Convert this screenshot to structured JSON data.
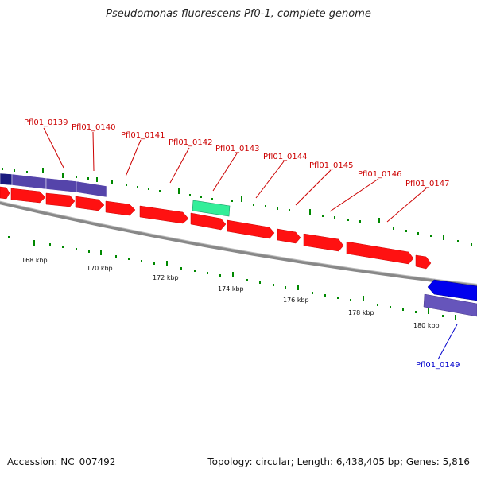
{
  "title": "Pseudomonas fluorescens Pf0-1, complete genome",
  "footer": {
    "accession": "Accession: NC_007492",
    "summary": "Topology: circular; Length: 6,438,405 bp; Genes: 5,816"
  },
  "colors": {
    "forward_gene": "#ff0000",
    "highlight_gene": "#33dd99",
    "reverse_gene": "#0000ee",
    "reverse_gene_light": "#6655bb",
    "forward_label": "#cc0000",
    "reverse_label": "#0000cc",
    "backbone": "#888888",
    "tick": "#008800"
  },
  "gene_labels": [
    {
      "text": "Pfl01_0139",
      "strand": "forward"
    },
    {
      "text": "Pfl01_0140",
      "strand": "forward"
    },
    {
      "text": "Pfl01_0141",
      "strand": "forward"
    },
    {
      "text": "Pfl01_0142",
      "strand": "forward"
    },
    {
      "text": "Pfl01_0143",
      "strand": "forward"
    },
    {
      "text": "Pfl01_0144",
      "strand": "forward"
    },
    {
      "text": "Pfl01_0145",
      "strand": "forward"
    },
    {
      "text": "Pfl01_0146",
      "strand": "forward"
    },
    {
      "text": "Pfl01_0147",
      "strand": "forward"
    },
    {
      "text": "Pfl01_0149",
      "strand": "reverse"
    }
  ],
  "scale_labels": [
    "168 kbp",
    "170 kbp",
    "172 kbp",
    "174 kbp",
    "176 kbp",
    "178 kbp",
    "180 kbp"
  ]
}
